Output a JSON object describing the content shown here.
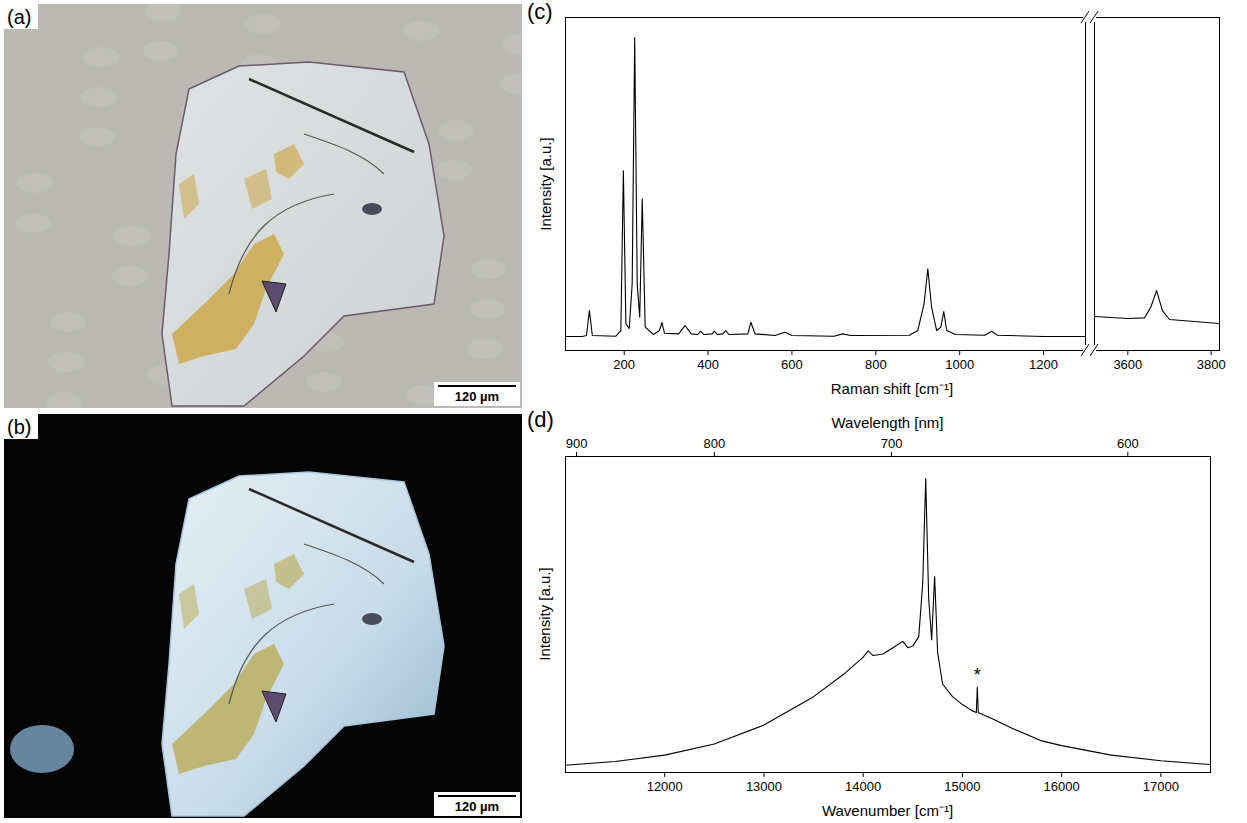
{
  "chart_data": [
    {
      "type": "image",
      "panel": "(a)",
      "scale_bar": "120 µm"
    },
    {
      "type": "image",
      "panel": "(b)",
      "scale_bar": "120 µm"
    },
    {
      "type": "line",
      "panel": "(c)",
      "x_label": "Raman shift [cm⁻¹]",
      "y_label": "Intensity [a.u.]",
      "tick_labels": "x",
      "color": "#000000",
      "xlim": [
        60,
        1300
      ],
      "xticks": [
        200,
        400,
        600,
        800,
        1000,
        1200
      ],
      "ylim": [
        0,
        100
      ],
      "yticks": [],
      "x": [
        60,
        100,
        110,
        117,
        124,
        180,
        192,
        198,
        204,
        212,
        219,
        225,
        231,
        237,
        243,
        250,
        270,
        284,
        290,
        296,
        330,
        345,
        360,
        375,
        382,
        390,
        410,
        415,
        422,
        435,
        442,
        450,
        495,
        502,
        512,
        560,
        583,
        600,
        700,
        721,
        740,
        880,
        900,
        915,
        924,
        933,
        945,
        955,
        962,
        969,
        990,
        1060,
        1076,
        1090,
        1200,
        1300
      ],
      "values": [
        4.2,
        4.2,
        4.5,
        12,
        4.5,
        4.3,
        6,
        54,
        8,
        6.6,
        20,
        94,
        20,
        10,
        45.5,
        7,
        4.8,
        6,
        8.4,
        5.2,
        5,
        7.5,
        5,
        4.8,
        5.8,
        4.8,
        5,
        5.8,
        4.8,
        5,
        6,
        4.8,
        5,
        8.5,
        5,
        4.5,
        5.5,
        4.5,
        4.3,
        5,
        4.5,
        4.6,
        6,
        14,
        24.5,
        13,
        6,
        7,
        11.7,
        6,
        4.8,
        4.6,
        5.8,
        4.6,
        4.2,
        4.2
      ]
    },
    {
      "type": "line",
      "tick_labels": "x",
      "color": "#000000",
      "xlim": [
        3520,
        3820
      ],
      "xticks": [
        3600,
        3800
      ],
      "ylim": [
        0,
        100
      ],
      "yticks": [],
      "x": [
        3520,
        3600,
        3640,
        3655,
        3669,
        3683,
        3700,
        3760,
        3820
      ],
      "values": [
        10.2,
        9.6,
        9.8,
        13,
        18,
        12,
        9.3,
        8.7,
        8.1
      ]
    },
    {
      "type": "line",
      "panel": "(d)",
      "x_label": "Wavenumber [cm⁻¹]",
      "x2_label": "Wavelength [nm]",
      "y_label": "Intensity [a.u.]",
      "tick_labels": "x",
      "color": "#000000",
      "xlim": [
        11000,
        17500
      ],
      "xticks": [
        12000,
        13000,
        14000,
        15000,
        16000,
        17000
      ],
      "x2ticks": [
        {
          "value": 11111.1,
          "label": "900"
        },
        {
          "value": 12500,
          "label": "800"
        },
        {
          "value": 14285.7,
          "label": "700"
        },
        {
          "value": 16666.7,
          "label": "600"
        }
      ],
      "ylim": [
        0,
        100
      ],
      "yticks": [],
      "annotations": [
        {
          "text": "*",
          "x": 15150,
          "y": 29
        }
      ],
      "x": [
        11000,
        11500,
        12000,
        12500,
        13000,
        13500,
        13800,
        14000,
        14050,
        14100,
        14200,
        14300,
        14400,
        14450,
        14500,
        14560,
        14600,
        14630,
        14660,
        14690,
        14720,
        14750,
        14800,
        14900,
        15000,
        15100,
        15140,
        15150,
        15160,
        15300,
        15500,
        15800,
        16000,
        16500,
        17000,
        17500
      ],
      "values": [
        2.3,
        3.5,
        5.5,
        9,
        15,
        24,
        31,
        36.5,
        38.5,
        37,
        37.5,
        39.5,
        41.5,
        39.5,
        40,
        43,
        60,
        93,
        55,
        42,
        62,
        38,
        28,
        24,
        21.5,
        19.5,
        19,
        27,
        19,
        17,
        14,
        10,
        8.5,
        5.5,
        3.7,
        2.5
      ]
    }
  ]
}
